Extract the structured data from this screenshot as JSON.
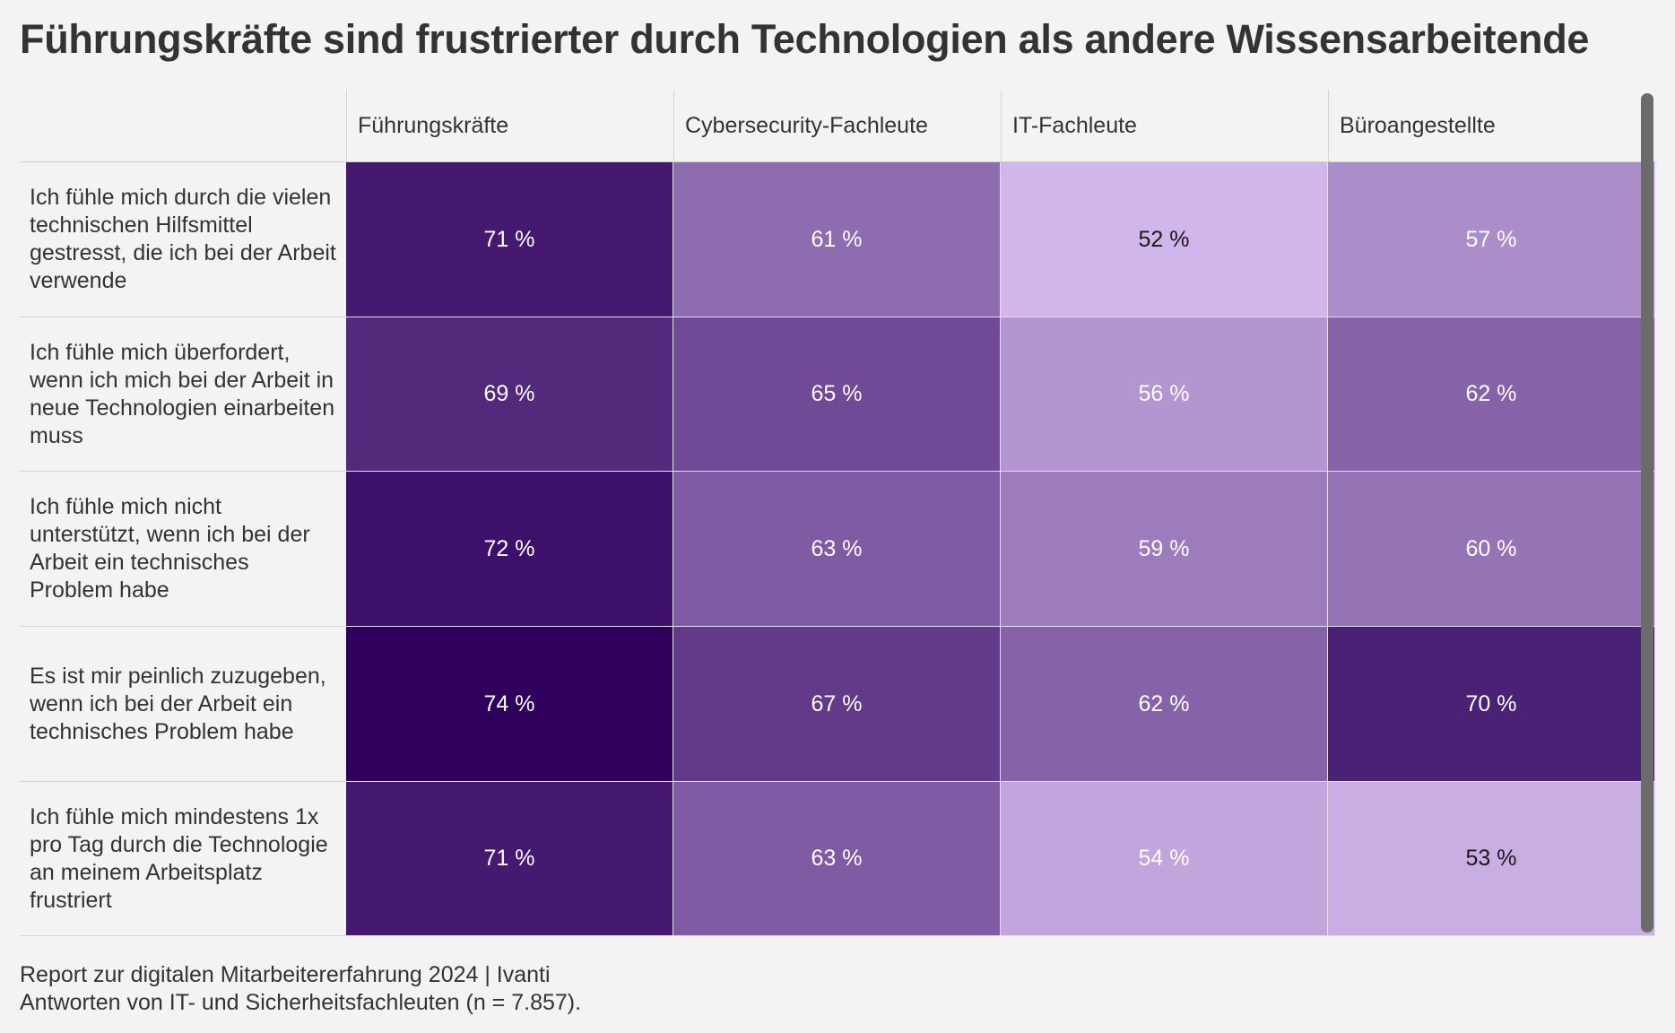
{
  "title": "Führungskräfte sind frustrierter durch Technologien als andere Wissensarbeitende",
  "footer": {
    "line1": "Report zur digitalen Mitarbeitererfahrung 2024 | Ivanti",
    "line2": "Antworten von IT- und Sicherheitsfachleuten (n = 7.857)."
  },
  "colors": {
    "scale_min": "#d0b6ea",
    "scale_max": "#2e005c",
    "background": "#f3f3f3"
  },
  "chart_data": {
    "type": "heatmap",
    "title": "Führungskräfte sind frustrierter durch Technologien als andere Wissensarbeitende",
    "columns": [
      "Führungskräfte",
      "Cybersecurity-Fachleute",
      "IT-Fachleute",
      "Büroangestellte"
    ],
    "rows": [
      "Ich fühle mich durch die vielen technischen Hilfsmittel gestresst, die ich bei der Arbeit verwende",
      "Ich fühle mich überfordert, wenn ich mich bei der Arbeit in neue Technologien einarbeiten muss",
      "Ich fühle mich nicht unterstützt, wenn ich bei der Arbeit ein technisches Problem habe",
      "Es ist mir peinlich zuzugeben, wenn ich bei der Arbeit ein technisches Problem habe",
      "Ich fühle mich mindestens 1x pro Tag durch die Technologie an meinem Arbeitsplatz frustriert"
    ],
    "values": [
      [
        71,
        61,
        52,
        57
      ],
      [
        69,
        65,
        56,
        62
      ],
      [
        72,
        63,
        59,
        60
      ],
      [
        74,
        67,
        62,
        70
      ],
      [
        71,
        63,
        54,
        53
      ]
    ],
    "labels": [
      [
        "71 %",
        "61 %",
        "52 %",
        "57 %"
      ],
      [
        "69 %",
        "65 %",
        "56 %",
        "62 %"
      ],
      [
        "72 %",
        "63 %",
        "59 %",
        "60 %"
      ],
      [
        "74 %",
        "67 %",
        "62 %",
        "70 %"
      ],
      [
        "71 %",
        "63 %",
        "54 %",
        "53 %"
      ]
    ],
    "unit": "%"
  }
}
